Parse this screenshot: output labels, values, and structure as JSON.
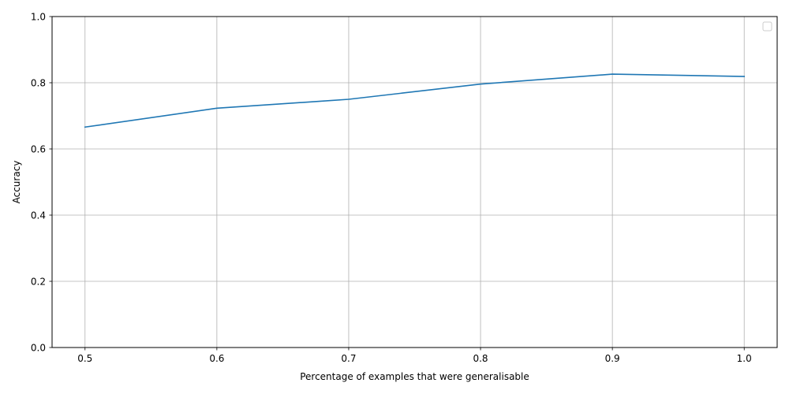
{
  "chart_data": {
    "type": "line",
    "title": "",
    "xlabel": "Percentage of examples that were generalisable",
    "ylabel": "Accuracy",
    "xlim": [
      0.475,
      1.025
    ],
    "ylim": [
      0.0,
      1.0
    ],
    "xticks": [
      0.5,
      0.6,
      0.7,
      0.8,
      0.9,
      1.0
    ],
    "xtick_labels": [
      "0.5",
      "0.6",
      "0.7",
      "0.8",
      "0.9",
      "1.0"
    ],
    "yticks": [
      0.0,
      0.2,
      0.4,
      0.6,
      0.8,
      1.0
    ],
    "ytick_labels": [
      "0.0",
      "0.2",
      "0.4",
      "0.6",
      "0.8",
      "1.0"
    ],
    "grid": true,
    "legend": "upper right, empty",
    "series": [
      {
        "color": "#1f77b4",
        "x": [
          0.5,
          0.6,
          0.7,
          0.8,
          0.9,
          1.0
        ],
        "y": [
          0.666,
          0.723,
          0.75,
          0.796,
          0.826,
          0.819
        ]
      }
    ]
  }
}
